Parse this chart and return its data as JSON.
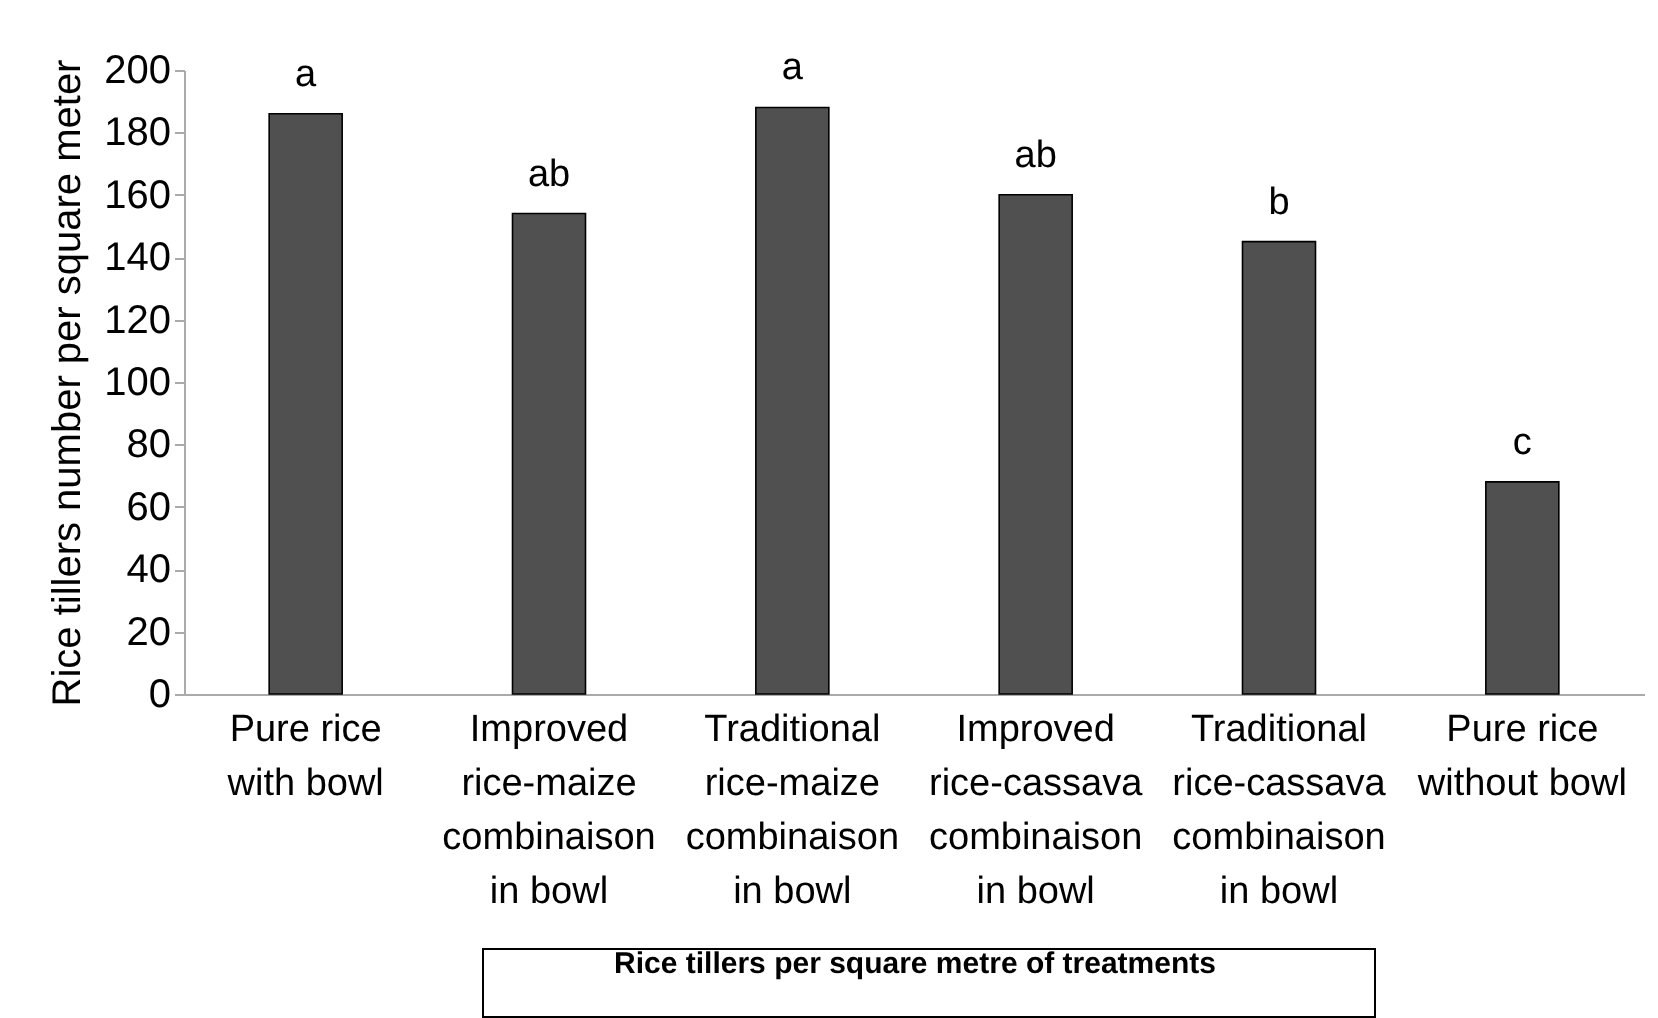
{
  "chart_data": {
    "type": "bar",
    "xlabel": "Rice tillers per square metre of treatments",
    "ylabel": "Rice tillers number per square meter",
    "categories": [
      "Pure rice\nwith bowl",
      "Improved\nrice-maize\ncombinaison\nin bowl",
      "Traditional\nrice-maize\ncombinaison\nin bowl",
      "Improved\nrice-cassava\ncombinaison\nin bowl",
      "Traditional\nrice-cassava\ncombinaison\nin bowl",
      "Pure rice\nwithout bowl"
    ],
    "values": [
      186,
      154,
      188,
      160,
      145,
      68
    ],
    "color": "#505050",
    "ylim": [
      0,
      200
    ],
    "yticks": [
      0,
      20,
      40,
      60,
      80,
      100,
      120,
      140,
      160,
      180,
      200
    ],
    "grid": false,
    "annotations": [
      {
        "text": "a",
        "x": "Pure rice\nwith bowl",
        "y": 186
      },
      {
        "text": "ab",
        "x": "Improved\nrice-maize\ncombinaison\nin bowl",
        "y": 154
      },
      {
        "text": "a",
        "x": "Traditional\nrice-maize\ncombinaison\nin bowl",
        "y": 188
      },
      {
        "text": "ab",
        "x": "Improved\nrice-cassava\ncombinaison\nin bowl",
        "y": 160
      },
      {
        "text": "b",
        "x": "Traditional\nrice-cassava\ncombinaison\nin bowl",
        "y": 145
      },
      {
        "text": "c",
        "x": "Pure rice\nwithout bowl",
        "y": 68
      }
    ]
  }
}
